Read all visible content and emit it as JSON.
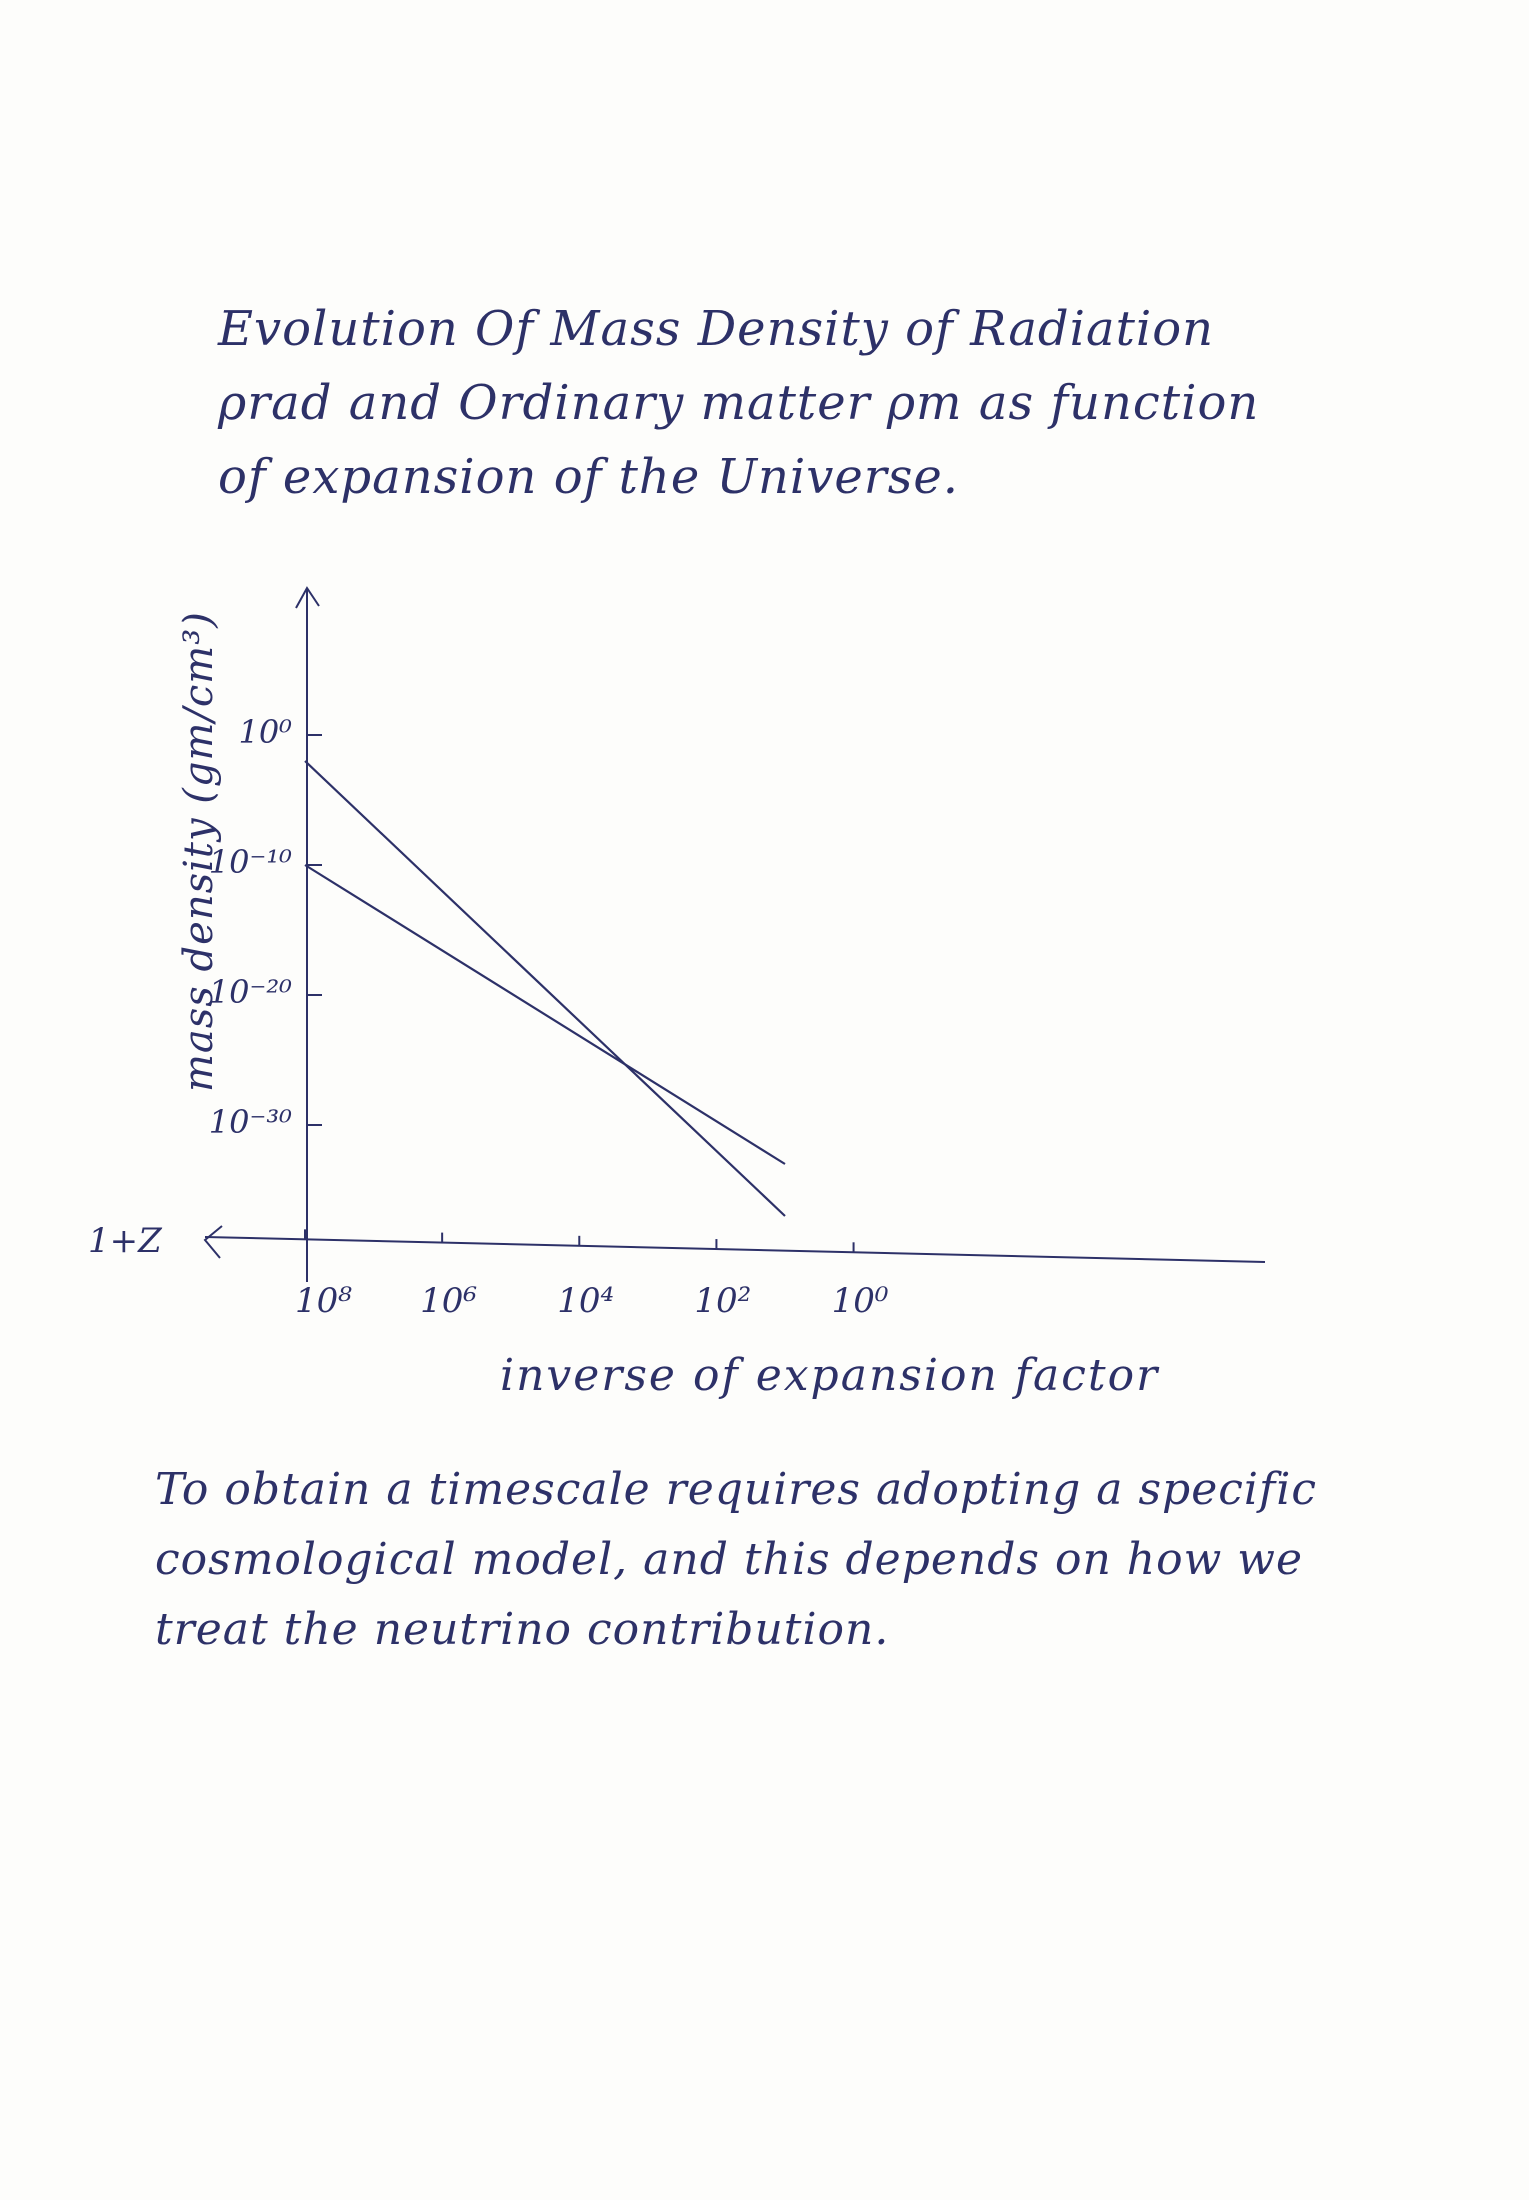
{
  "title": "Evolution Of Mass Density of Radiation ρrad and Ordinary matter ρm as function of expansion of the Universe.",
  "paragraph": "To obtain a timescale requires adopting a specific cosmological model, and this depends on how we treat the neutrino contribution.",
  "colors": {
    "ink": "#2d3168",
    "background": "#fdfdfb"
  },
  "chart_data": {
    "type": "line",
    "title": "",
    "xlabel": "inverse of expansion factor",
    "x_secondary_label": "1+Z",
    "ylabel": "mass density (gm/cm³)",
    "x_direction": "decreasing to the right",
    "x_log_scale": true,
    "y_log_scale": true,
    "x_ticks": [
      {
        "value": 100000000,
        "label": "10⁸"
      },
      {
        "value": 1000000,
        "label": "10⁶"
      },
      {
        "value": 10000,
        "label": "10⁴"
      },
      {
        "value": 100,
        "label": "10²"
      },
      {
        "value": 1,
        "label": "10⁰"
      }
    ],
    "y_ticks": [
      {
        "value": 1,
        "label": "10⁰"
      },
      {
        "value": 1e-10,
        "label": "10⁻¹⁰"
      },
      {
        "value": 1e-20,
        "label": "10⁻²⁰"
      },
      {
        "value": 1e-30,
        "label": "10⁻³⁰"
      }
    ],
    "xlim": [
      100000000,
      1e-06
    ],
    "ylim": [
      1e-40,
      10000000000.0
    ],
    "grid": false,
    "legend": "none",
    "series": [
      {
        "x": [
          100000000,
          10
        ],
        "y": [
          0.01,
          1e-37
        ]
      },
      {
        "x": [
          100000000,
          10
        ],
        "y": [
          1e-10,
          1e-33
        ]
      }
    ]
  }
}
